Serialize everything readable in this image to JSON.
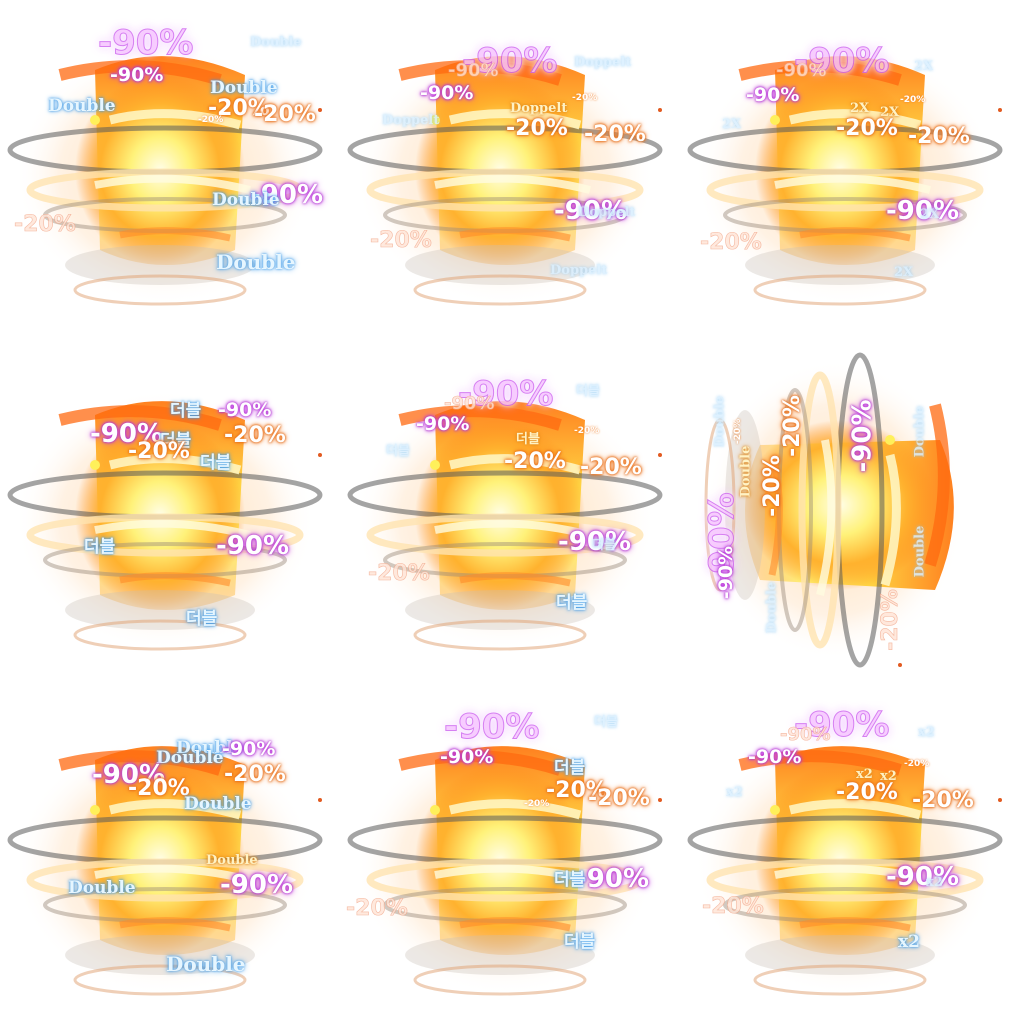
{
  "sheet": {
    "cells": [
      {
        "id": "r1c1",
        "labels": {
          "big": "-90%",
          "mag": "-90%",
          "org_a": "-20%",
          "org_b": "-20%",
          "tiny": "-20%",
          "faint": "-20%",
          "mag_lg": "-90%",
          "blue_top": "Double",
          "blue_left": "Double",
          "blue_mid": "Double",
          "blue_mid2": "Double",
          "blue_bot": "Double"
        }
      },
      {
        "id": "r1c2",
        "labels": {
          "big": "-90%",
          "big_ghost": "-90%",
          "mag": "-90%",
          "org_a": "-20%",
          "org_b": "-20%",
          "tiny": "-20%",
          "faint": "-20%",
          "mag_lg": "-90%",
          "blue_top": "Doppelt",
          "blue_left": "Doppelt",
          "gold": "Doppelt",
          "blue_mid": "Doppelt",
          "blue_bot": "Doppelt"
        }
      },
      {
        "id": "r1c3",
        "labels": {
          "big": "-90%",
          "big_ghost": "-90%",
          "mag": "-90%",
          "org_a": "-20%",
          "org_b": "-20%",
          "tiny": "-20%",
          "faint": "-20%",
          "mag_lg": "-90%",
          "blue_top": "2X",
          "blue_left": "2X",
          "gold": "2X",
          "gold2": "2X",
          "blue_mid": "2X",
          "blue_bot": "2X"
        }
      },
      {
        "id": "r2c1",
        "labels": {
          "mag": "-90%",
          "mag_top": "-90%",
          "org_a": "-20%",
          "org_b": "-20%",
          "mag_lg": "-90%",
          "blue_top": "더블",
          "blue_mid": "더블",
          "blue_side": "더블",
          "blue_left": "더블",
          "blue_bot": "더블"
        }
      },
      {
        "id": "r2c2",
        "labels": {
          "big": "-90%",
          "big_ghost": "-90%",
          "mag": "-90%",
          "org_a": "-20%",
          "org_b": "-20%",
          "tiny": "-20%",
          "faint": "-20%",
          "mag_lg": "-90%",
          "blue_top": "더블",
          "blue_left": "더블",
          "gold": "더블",
          "blue_mid": "더블",
          "blue_bot": "더블"
        }
      },
      {
        "id": "r2c3",
        "labels": {
          "org_a": "-20%",
          "org_b": "-20%",
          "tiny": "-20%",
          "faint": "-20%",
          "big": "-90%",
          "mag": "-90%",
          "mag_lg": "-90%",
          "blue_top": "Double",
          "blue_left": "Double",
          "gold": "Double",
          "blue_mid": "Double",
          "blue_bot": "Double"
        }
      },
      {
        "id": "r3c1",
        "labels": {
          "mag": "-90%",
          "mag_top": "-90%",
          "org_a": "-20%",
          "org_b": "-20%",
          "mag_lg": "-90%",
          "blue_top": "Double",
          "blue_top2": "Double",
          "blue_mid": "Double",
          "blue_side": "Double",
          "blue_left": "Double",
          "blue_bot": "Double"
        }
      },
      {
        "id": "r3c2",
        "labels": {
          "big": "-90%",
          "mag": "-90%",
          "org_a": "-20%",
          "org_b": "-20%",
          "tiny": "-20%",
          "faint": "-20%",
          "mag_lg": "-90%",
          "blue_top": "더블",
          "gold": "더블",
          "blue_mid": "더블",
          "blue_bot": "더블"
        }
      },
      {
        "id": "r3c3",
        "labels": {
          "big": "-90%",
          "big_ghost": "-90%",
          "mag": "-90%",
          "org_a": "-20%",
          "org_b": "-20%",
          "tiny": "-20%",
          "faint": "-20%",
          "mag_lg": "-90%",
          "blue_top": "x2",
          "blue_left": "x2",
          "gold": "x2",
          "gold2": "x2",
          "blue_mid": "x2",
          "blue_bot": "x2"
        }
      }
    ]
  }
}
